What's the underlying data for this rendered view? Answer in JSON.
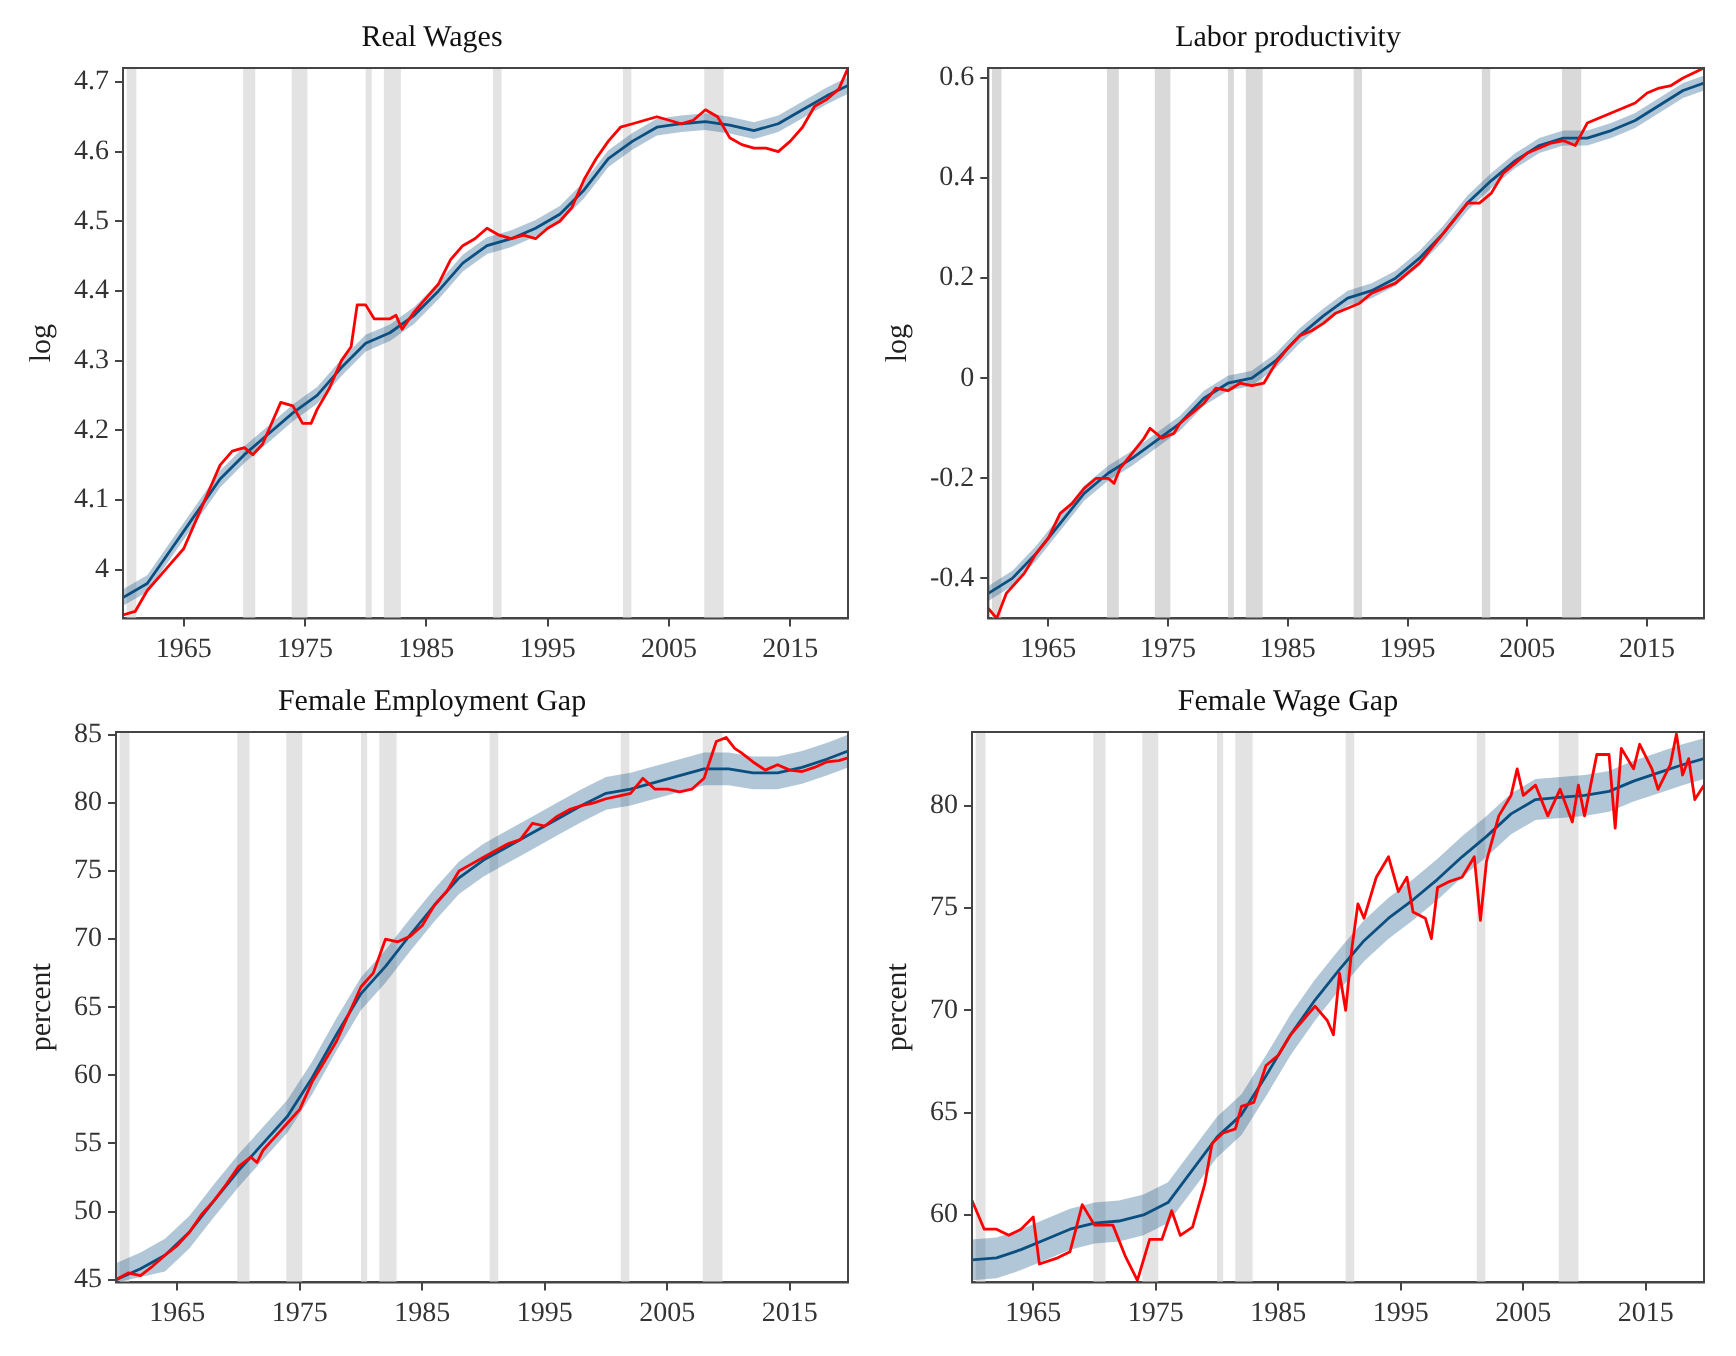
{
  "chart_data": [
    {
      "type": "line",
      "title": "Real Wages",
      "ylabel": "log",
      "xlim": [
        1960,
        2019.75
      ],
      "xticks": [
        1965,
        1975,
        1985,
        1995,
        2005,
        2015
      ],
      "ylim": [
        3.93,
        4.72
      ],
      "yticks": [
        4,
        4.1,
        4.2,
        4.3,
        4.4,
        4.5,
        4.6,
        4.7
      ],
      "bands": [
        {
          "axis": "x",
          "from": 1960.3,
          "to": 1961.1,
          "color": "#e3e3e3"
        },
        {
          "axis": "x",
          "from": 1969.9,
          "to": 1970.9,
          "color": "#e3e3e3"
        },
        {
          "axis": "x",
          "from": 1973.9,
          "to": 1975.2,
          "color": "#e3e3e3"
        },
        {
          "axis": "x",
          "from": 1980.0,
          "to": 1980.5,
          "color": "#e3e3e3"
        },
        {
          "axis": "x",
          "from": 1981.5,
          "to": 1982.9,
          "color": "#e3e3e3"
        },
        {
          "axis": "x",
          "from": 1990.5,
          "to": 1991.2,
          "color": "#e3e3e3"
        },
        {
          "axis": "x",
          "from": 2001.2,
          "to": 2001.9,
          "color": "#e3e3e3"
        },
        {
          "axis": "x",
          "from": 2007.9,
          "to": 2009.5,
          "color": "#e3e3e3"
        }
      ],
      "series": [
        {
          "color": "#ff0000",
          "x": [
            1960,
            1961,
            1962,
            1963,
            1964,
            1965,
            1966,
            1967,
            1968,
            1969,
            1970,
            1970.7,
            1971.5,
            1972,
            1973,
            1974,
            1974.8,
            1975.5,
            1976,
            1977,
            1978,
            1978.8,
            1979.3,
            1980,
            1980.7,
            1982,
            1982.5,
            1983,
            1984,
            1985,
            1986,
            1987,
            1988,
            1989,
            1990,
            1991,
            1992,
            1993,
            1994,
            1995,
            1996,
            1997,
            1998,
            1999,
            2000,
            2001,
            2002,
            2003,
            2004,
            2005,
            2006,
            2007,
            2008,
            2009,
            2010,
            2011,
            2012,
            2013,
            2014,
            2015,
            2016,
            2017,
            2018,
            2019,
            2019.75
          ],
          "values": [
            3.935,
            3.94,
            3.97,
            3.99,
            4.01,
            4.03,
            4.07,
            4.11,
            4.15,
            4.17,
            4.175,
            4.165,
            4.18,
            4.2,
            4.24,
            4.235,
            4.21,
            4.21,
            4.23,
            4.26,
            4.3,
            4.32,
            4.38,
            4.38,
            4.36,
            4.36,
            4.365,
            4.345,
            4.37,
            4.39,
            4.41,
            4.445,
            4.465,
            4.475,
            4.49,
            4.48,
            4.475,
            4.48,
            4.475,
            4.49,
            4.5,
            4.52,
            4.56,
            4.59,
            4.615,
            4.635,
            4.64,
            4.645,
            4.65,
            4.645,
            4.64,
            4.645,
            4.66,
            4.65,
            4.62,
            4.61,
            4.605,
            4.605,
            4.6,
            4.615,
            4.635,
            4.665,
            4.675,
            4.69,
            4.72
          ]
        },
        {
          "color": "#0b4f80",
          "x": [
            1960,
            1962,
            1964,
            1966,
            1968,
            1970,
            1972,
            1974,
            1976,
            1978,
            1980,
            1982,
            1984,
            1986,
            1988,
            1990,
            1992,
            1994,
            1996,
            1998,
            2000,
            2002,
            2004,
            2006,
            2008,
            2010,
            2012,
            2014,
            2016,
            2018,
            2019.75
          ],
          "values": [
            3.96,
            3.98,
            4.03,
            4.08,
            4.13,
            4.165,
            4.195,
            4.225,
            4.25,
            4.29,
            4.325,
            4.34,
            4.365,
            4.4,
            4.44,
            4.465,
            4.475,
            4.49,
            4.51,
            4.545,
            4.59,
            4.615,
            4.635,
            4.64,
            4.643,
            4.638,
            4.63,
            4.64,
            4.66,
            4.68,
            4.695
          ],
          "lower": [
            3.948,
            3.968,
            4.018,
            4.068,
            4.118,
            4.153,
            4.183,
            4.213,
            4.238,
            4.278,
            4.313,
            4.328,
            4.353,
            4.388,
            4.428,
            4.453,
            4.463,
            4.478,
            4.498,
            4.533,
            4.578,
            4.603,
            4.623,
            4.628,
            4.631,
            4.626,
            4.618,
            4.628,
            4.648,
            4.668,
            4.683
          ],
          "upper": [
            3.972,
            3.992,
            4.042,
            4.092,
            4.142,
            4.177,
            4.207,
            4.237,
            4.262,
            4.302,
            4.337,
            4.352,
            4.377,
            4.412,
            4.452,
            4.477,
            4.487,
            4.502,
            4.522,
            4.557,
            4.602,
            4.627,
            4.647,
            4.652,
            4.655,
            4.65,
            4.642,
            4.652,
            4.672,
            4.692,
            4.707
          ]
        }
      ]
    },
    {
      "type": "line",
      "title": "Labor productivity",
      "ylabel": "log",
      "xlim": [
        1960,
        2019.75
      ],
      "xticks": [
        1965,
        1975,
        1985,
        1995,
        2005,
        2015
      ],
      "ylim": [
        -0.48,
        0.62
      ],
      "yticks": [
        -0.4,
        -0.2,
        0,
        0.2,
        0.4,
        0.6
      ],
      "bands": [
        {
          "axis": "x",
          "from": 1960.3,
          "to": 1961.1,
          "color": "#d9d9d9"
        },
        {
          "axis": "x",
          "from": 1969.9,
          "to": 1970.9,
          "color": "#d9d9d9"
        },
        {
          "axis": "x",
          "from": 1973.9,
          "to": 1975.2,
          "color": "#d9d9d9"
        },
        {
          "axis": "x",
          "from": 1980.0,
          "to": 1980.5,
          "color": "#d9d9d9"
        },
        {
          "axis": "x",
          "from": 1981.5,
          "to": 1982.9,
          "color": "#d9d9d9"
        },
        {
          "axis": "x",
          "from": 1990.5,
          "to": 1991.2,
          "color": "#d9d9d9"
        },
        {
          "axis": "x",
          "from": 2001.2,
          "to": 2001.9,
          "color": "#d9d9d9"
        },
        {
          "axis": "x",
          "from": 2007.9,
          "to": 2009.5,
          "color": "#d9d9d9"
        }
      ],
      "series": [
        {
          "color": "#ff0000",
          "x": [
            1960,
            1960.7,
            1961.5,
            1963,
            1964,
            1965,
            1966,
            1967,
            1968,
            1969,
            1970,
            1970.5,
            1971,
            1972,
            1973,
            1973.5,
            1974.5,
            1975.5,
            1976,
            1977,
            1978,
            1979,
            1980,
            1981,
            1982,
            1983,
            1984,
            1985,
            1986,
            1987,
            1988,
            1989,
            1990,
            1991,
            1992,
            1993,
            1994,
            1995,
            1996,
            1997,
            1998,
            1999,
            2000,
            2001,
            2002,
            2003,
            2004,
            2005,
            2006,
            2007,
            2008,
            2009,
            2010,
            2011,
            2012,
            2013,
            2014,
            2015,
            2016,
            2017,
            2018,
            2019.75
          ],
          "values": [
            -0.46,
            -0.48,
            -0.43,
            -0.39,
            -0.35,
            -0.32,
            -0.27,
            -0.25,
            -0.22,
            -0.2,
            -0.2,
            -0.21,
            -0.18,
            -0.15,
            -0.12,
            -0.1,
            -0.12,
            -0.11,
            -0.09,
            -0.07,
            -0.05,
            -0.02,
            -0.025,
            -0.01,
            -0.015,
            -0.01,
            0.03,
            0.06,
            0.085,
            0.095,
            0.11,
            0.13,
            0.14,
            0.15,
            0.17,
            0.18,
            0.19,
            0.21,
            0.23,
            0.26,
            0.29,
            0.32,
            0.35,
            0.35,
            0.37,
            0.41,
            0.43,
            0.45,
            0.46,
            0.47,
            0.475,
            0.465,
            0.51,
            0.52,
            0.53,
            0.54,
            0.55,
            0.57,
            0.58,
            0.585,
            0.6,
            0.62
          ]
        },
        {
          "color": "#0b4f80",
          "x": [
            1960,
            1962,
            1964,
            1966,
            1968,
            1970,
            1972,
            1974,
            1976,
            1978,
            1980,
            1982,
            1984,
            1986,
            1988,
            1990,
            1992,
            1994,
            1996,
            1998,
            2000,
            2002,
            2004,
            2006,
            2008,
            2010,
            2012,
            2014,
            2016,
            2018,
            2019.75
          ],
          "values": [
            -0.43,
            -0.4,
            -0.35,
            -0.29,
            -0.23,
            -0.19,
            -0.16,
            -0.125,
            -0.09,
            -0.04,
            -0.01,
            0,
            0.035,
            0.085,
            0.125,
            0.16,
            0.175,
            0.2,
            0.24,
            0.29,
            0.35,
            0.395,
            0.435,
            0.465,
            0.48,
            0.48,
            0.495,
            0.515,
            0.545,
            0.575,
            0.59
          ],
          "lower": [
            -0.445,
            -0.415,
            -0.365,
            -0.305,
            -0.245,
            -0.205,
            -0.175,
            -0.14,
            -0.105,
            -0.055,
            -0.025,
            -0.015,
            0.02,
            0.07,
            0.11,
            0.145,
            0.16,
            0.185,
            0.225,
            0.275,
            0.335,
            0.38,
            0.42,
            0.45,
            0.465,
            0.465,
            0.48,
            0.5,
            0.53,
            0.56,
            0.575
          ],
          "upper": [
            -0.415,
            -0.385,
            -0.335,
            -0.275,
            -0.215,
            -0.175,
            -0.145,
            -0.11,
            -0.075,
            -0.025,
            0.005,
            0.015,
            0.05,
            0.1,
            0.14,
            0.175,
            0.19,
            0.215,
            0.255,
            0.305,
            0.365,
            0.41,
            0.45,
            0.48,
            0.495,
            0.495,
            0.51,
            0.53,
            0.56,
            0.59,
            0.605
          ]
        }
      ]
    },
    {
      "type": "line",
      "title": "Female Employment Gap",
      "ylabel": "percent",
      "xlim": [
        1960,
        2019.75
      ],
      "xticks": [
        1965,
        1975,
        1985,
        1995,
        2005,
        2015
      ],
      "ylim": [
        44.8,
        85.2
      ],
      "yticks": [
        45,
        50,
        55,
        60,
        65,
        70,
        75,
        80,
        85
      ],
      "bands": [
        {
          "axis": "x",
          "from": 1960.3,
          "to": 1961.1,
          "color": "#e3e3e3"
        },
        {
          "axis": "x",
          "from": 1969.9,
          "to": 1970.9,
          "color": "#e3e3e3"
        },
        {
          "axis": "x",
          "from": 1973.9,
          "to": 1975.2,
          "color": "#e3e3e3"
        },
        {
          "axis": "x",
          "from": 1980.0,
          "to": 1980.5,
          "color": "#e3e3e3"
        },
        {
          "axis": "x",
          "from": 1981.5,
          "to": 1982.9,
          "color": "#e3e3e3"
        },
        {
          "axis": "x",
          "from": 1990.5,
          "to": 1991.2,
          "color": "#e3e3e3"
        },
        {
          "axis": "x",
          "from": 2001.2,
          "to": 2001.9,
          "color": "#e3e3e3"
        },
        {
          "axis": "x",
          "from": 2007.9,
          "to": 2009.5,
          "color": "#e3e3e3"
        }
      ],
      "series": [
        {
          "color": "#ff0000",
          "x": [
            1960,
            1961,
            1962,
            1963,
            1964,
            1965,
            1966,
            1967,
            1968,
            1969,
            1970,
            1971,
            1971.5,
            1972,
            1973,
            1974,
            1975,
            1976,
            1977,
            1978,
            1979,
            1980,
            1981,
            1982,
            1983,
            1984,
            1985,
            1986,
            1987,
            1988,
            1989,
            1990,
            1991,
            1992,
            1993,
            1994,
            1995,
            1996,
            1997,
            1998,
            1999,
            2000,
            2001,
            2002,
            2003,
            2004,
            2005,
            2006,
            2007,
            2008,
            2009,
            2009.8,
            2010.5,
            2011,
            2012,
            2013,
            2014,
            2015,
            2016,
            2017,
            2018,
            2019,
            2019.75
          ],
          "values": [
            45,
            45.5,
            45.3,
            46,
            46.8,
            47.5,
            48.5,
            49.8,
            50.8,
            52,
            53.3,
            54,
            53.6,
            54.5,
            55.5,
            56.5,
            57.5,
            59.5,
            61,
            62.5,
            64.5,
            66.5,
            67.5,
            70,
            69.8,
            70.2,
            71,
            72.5,
            73.5,
            75,
            75.5,
            76,
            76.5,
            77,
            77.3,
            78.5,
            78.3,
            79,
            79.5,
            79.8,
            80,
            80.3,
            80.5,
            80.7,
            81.8,
            81,
            81,
            80.8,
            81,
            81.8,
            84.5,
            84.8,
            84,
            83.7,
            83,
            82.4,
            82.8,
            82.4,
            82.3,
            82.6,
            83,
            83.1,
            83.3
          ]
        },
        {
          "color": "#0b4f80",
          "x": [
            1960,
            1962,
            1964,
            1966,
            1968,
            1970,
            1972,
            1974,
            1976,
            1978,
            1980,
            1982,
            1984,
            1986,
            1988,
            1990,
            1992,
            1994,
            1996,
            1998,
            2000,
            2002,
            2004,
            2006,
            2008,
            2010,
            2012,
            2014,
            2016,
            2018,
            2019.75
          ],
          "values": [
            45,
            45.8,
            46.8,
            48.5,
            50.8,
            53,
            55,
            57,
            59.8,
            63,
            66,
            68,
            70.3,
            72.5,
            74.5,
            75.8,
            76.8,
            77.8,
            78.8,
            79.8,
            80.7,
            81,
            81.5,
            82,
            82.5,
            82.5,
            82.2,
            82.2,
            82.6,
            83.2,
            83.8
          ],
          "lower": [
            44.8,
            45.2,
            45.6,
            47.3,
            49.6,
            51.8,
            53.8,
            55.8,
            58.6,
            61.8,
            64.8,
            66.8,
            69.1,
            71.3,
            73.3,
            74.6,
            75.6,
            76.6,
            77.6,
            78.6,
            79.5,
            79.8,
            80.3,
            80.8,
            81.3,
            81.3,
            81,
            81,
            81.4,
            82,
            82.6
          ],
          "upper": [
            46.2,
            47,
            48,
            49.7,
            52,
            54.2,
            56.2,
            58.2,
            61,
            64.2,
            67.2,
            69.2,
            71.5,
            73.7,
            75.7,
            77,
            78,
            79,
            80,
            81,
            81.9,
            82.2,
            82.7,
            83.2,
            83.7,
            83.7,
            83.4,
            83.4,
            83.8,
            84.4,
            85
          ]
        }
      ]
    },
    {
      "type": "line",
      "title": "Female Wage Gap",
      "ylabel": "percent",
      "xlim": [
        1960,
        2019.75
      ],
      "xticks": [
        1965,
        1975,
        1985,
        1995,
        2005,
        2015
      ],
      "ylim": [
        56.7,
        83.6
      ],
      "yticks": [
        60,
        65,
        70,
        75,
        80
      ],
      "bands": [
        {
          "axis": "x",
          "from": 1960.3,
          "to": 1961.1,
          "color": "#e3e3e3"
        },
        {
          "axis": "x",
          "from": 1969.9,
          "to": 1970.9,
          "color": "#e3e3e3"
        },
        {
          "axis": "x",
          "from": 1973.9,
          "to": 1975.2,
          "color": "#e3e3e3"
        },
        {
          "axis": "x",
          "from": 1980.0,
          "to": 1980.5,
          "color": "#e3e3e3"
        },
        {
          "axis": "x",
          "from": 1981.5,
          "to": 1982.9,
          "color": "#e3e3e3"
        },
        {
          "axis": "x",
          "from": 1990.5,
          "to": 1991.2,
          "color": "#e3e3e3"
        },
        {
          "axis": "x",
          "from": 2001.2,
          "to": 2001.9,
          "color": "#e3e3e3"
        },
        {
          "axis": "x",
          "from": 2007.9,
          "to": 2009.5,
          "color": "#e3e3e3"
        }
      ],
      "series": [
        {
          "color": "#ff0000",
          "x": [
            1960,
            1961,
            1962,
            1963,
            1964,
            1965,
            1965.5,
            1967,
            1968,
            1969,
            1970,
            1971.5,
            1972.5,
            1973.5,
            1974.5,
            1975.5,
            1976.3,
            1977,
            1978,
            1979,
            1979.6,
            1980.5,
            1981.5,
            1982,
            1983,
            1984,
            1985,
            1986,
            1987,
            1988,
            1989,
            1989.5,
            1990,
            1990.5,
            1991,
            1991.5,
            1992,
            1993,
            1994,
            1994.8,
            1995.5,
            1996,
            1997,
            1997.5,
            1998,
            1999,
            2000,
            2001,
            2001.5,
            2002,
            2003,
            2004,
            2004.5,
            2005,
            2006,
            2007,
            2008,
            2009,
            2009.5,
            2010,
            2011,
            2012,
            2012.5,
            2013,
            2014,
            2014.5,
            2015.5,
            2016,
            2017,
            2017.5,
            2018,
            2018.5,
            2019,
            2019.75
          ],
          "values": [
            60.7,
            59.3,
            59.3,
            59,
            59.3,
            59.9,
            57.6,
            57.9,
            58.2,
            60.5,
            59.5,
            59.5,
            58,
            56.8,
            58.8,
            58.8,
            60.2,
            59,
            59.4,
            61.5,
            63.5,
            64,
            64.2,
            65.3,
            65.5,
            67.3,
            67.8,
            68.8,
            69.5,
            70.2,
            69.5,
            68.8,
            71.8,
            70,
            73,
            75.2,
            74.5,
            76.5,
            77.5,
            75.8,
            76.5,
            74.8,
            74.5,
            73.5,
            76,
            76.3,
            76.5,
            77.5,
            74.4,
            77.3,
            79.5,
            80.5,
            81.8,
            80.5,
            81,
            79.5,
            80.8,
            79.2,
            81,
            79.5,
            82.5,
            82.5,
            78.9,
            82.8,
            81.8,
            83,
            81.8,
            80.8,
            82,
            83.5,
            81.5,
            82.3,
            80.3,
            81
          ]
        },
        {
          "color": "#0b4f80",
          "x": [
            1960,
            1962,
            1964,
            1966,
            1968,
            1970,
            1972,
            1974,
            1976,
            1978,
            1980,
            1982,
            1984,
            1986,
            1988,
            1990,
            1992,
            1994,
            1996,
            1998,
            2000,
            2002,
            2004,
            2006,
            2008,
            2010,
            2012,
            2014,
            2016,
            2018,
            2019.75
          ],
          "values": [
            57.8,
            57.9,
            58.3,
            58.8,
            59.3,
            59.6,
            59.7,
            60,
            60.6,
            62.2,
            63.8,
            64.9,
            66.8,
            68.8,
            70.5,
            72,
            73.4,
            74.5,
            75.4,
            76.4,
            77.5,
            78.5,
            79.6,
            80.3,
            80.4,
            80.5,
            80.7,
            81.2,
            81.6,
            82,
            82.3
          ],
          "lower": [
            56.8,
            56.9,
            57.3,
            57.8,
            58.3,
            58.6,
            58.7,
            59,
            59.6,
            61.2,
            62.8,
            63.9,
            65.8,
            67.8,
            69.5,
            71,
            72.4,
            73.5,
            74.4,
            75.4,
            76.5,
            77.5,
            78.6,
            79.3,
            79.4,
            79.5,
            79.7,
            80.2,
            80.6,
            81,
            81.3
          ],
          "upper": [
            58.8,
            58.9,
            59.3,
            59.8,
            60.3,
            60.6,
            60.7,
            61,
            61.6,
            63.2,
            64.8,
            65.9,
            67.8,
            69.8,
            71.5,
            73,
            74.4,
            75.5,
            76.4,
            77.4,
            78.5,
            79.5,
            80.6,
            81.3,
            81.4,
            81.5,
            81.7,
            82.2,
            82.6,
            83,
            83.3
          ]
        }
      ]
    }
  ]
}
